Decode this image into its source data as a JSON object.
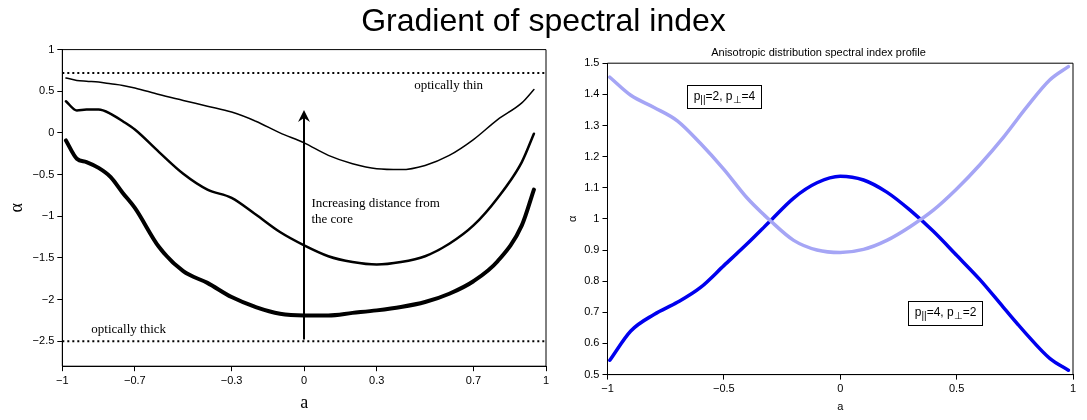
{
  "chart_data": [
    {
      "type": "line",
      "title": "Gradient of spectral index",
      "xlabel": "a",
      "ylabel": "α",
      "xlim": [
        -1,
        1
      ],
      "xticks": [
        -1,
        -0.7,
        -0.3,
        0,
        0.3,
        0.7,
        1
      ],
      "ylim": [
        -2.8,
        1
      ],
      "yticks": [
        -2.5,
        -2,
        -1.5,
        -1,
        -0.5,
        0,
        0.5,
        1
      ],
      "x": [
        -0.985,
        -0.94,
        -0.9,
        -0.85,
        -0.8,
        -0.75,
        -0.7,
        -0.6,
        -0.5,
        -0.4,
        -0.3,
        -0.2,
        -0.1,
        0,
        0.1,
        0.2,
        0.3,
        0.4,
        0.5,
        0.6,
        0.7,
        0.8,
        0.9,
        0.95
      ],
      "series": [
        {
          "color": "#000000",
          "values": [
            0.66,
            0.63,
            0.62,
            0.61,
            0.59,
            0.57,
            0.54,
            0.46,
            0.39,
            0.32,
            0.25,
            0.14,
            0.0,
            -0.12,
            -0.27,
            -0.37,
            -0.43,
            -0.44,
            -0.39,
            -0.27,
            -0.08,
            0.16,
            0.36,
            0.52
          ]
        },
        {
          "color": "#000000",
          "values": [
            0.38,
            0.27,
            0.28,
            0.28,
            0.23,
            0.14,
            0.04,
            -0.23,
            -0.49,
            -0.68,
            -0.78,
            -0.98,
            -1.19,
            -1.35,
            -1.48,
            -1.55,
            -1.58,
            -1.55,
            -1.48,
            -1.33,
            -1.11,
            -0.78,
            -0.35,
            -0.01
          ]
        },
        {
          "color": "#000000",
          "values": [
            -0.09,
            -0.31,
            -0.35,
            -0.42,
            -0.53,
            -0.72,
            -0.9,
            -1.37,
            -1.66,
            -1.8,
            -1.97,
            -2.09,
            -2.17,
            -2.19,
            -2.19,
            -2.16,
            -2.13,
            -2.09,
            -2.03,
            -1.93,
            -1.78,
            -1.54,
            -1.11,
            -0.68
          ]
        }
      ],
      "ref_lines": [
        {
          "axis": "y",
          "value": 0.72,
          "label": "optically thin",
          "color": "#000000",
          "line_style": "dotted"
        },
        {
          "axis": "y",
          "value": -2.5,
          "label": "optically thick",
          "color": "#000000",
          "line_style": "dotted"
        }
      ],
      "annotations": [
        "Increasing distance from the core"
      ],
      "grid": false,
      "legend": false,
      "marker": "none",
      "line_style": "solid"
    },
    {
      "type": "line",
      "title": "Anisotropic distribution spectral index profile",
      "xlabel": "a",
      "ylabel": "α",
      "xlim": [
        -1,
        1
      ],
      "xticks": [
        -1,
        -0.5,
        0,
        0.5,
        1
      ],
      "ylim": [
        0.5,
        1.5
      ],
      "yticks": [
        0.5,
        0.6,
        0.7,
        0.8,
        0.9,
        1,
        1.1,
        1.2,
        1.3,
        1.4,
        1.5
      ],
      "x": [
        -0.99,
        -0.9,
        -0.8,
        -0.7,
        -0.6,
        -0.5,
        -0.4,
        -0.3,
        -0.2,
        -0.1,
        0,
        0.1,
        0.2,
        0.3,
        0.4,
        0.5,
        0.6,
        0.7,
        0.8,
        0.9,
        0.98
      ],
      "series": [
        {
          "name": "p$_{||}$=2, p$_{⊥}$=4",
          "color": "#a5a5f5",
          "values": [
            1.455,
            1.397,
            1.358,
            1.315,
            1.242,
            1.159,
            1.067,
            0.994,
            0.931,
            0.9,
            0.892,
            0.902,
            0.931,
            0.975,
            1.028,
            1.096,
            1.174,
            1.261,
            1.358,
            1.446,
            1.489
          ]
        },
        {
          "name": "p$_{||}$=4, p$_{⊥}$=2",
          "color": "#0000ee",
          "values": [
            0.546,
            0.64,
            0.693,
            0.732,
            0.78,
            0.85,
            0.92,
            0.994,
            1.067,
            1.116,
            1.137,
            1.125,
            1.086,
            1.028,
            0.96,
            0.883,
            0.805,
            0.717,
            0.63,
            0.552,
            0.514
          ]
        }
      ],
      "grid": false,
      "legend": false,
      "marker": "none",
      "line_style": "solid"
    }
  ]
}
